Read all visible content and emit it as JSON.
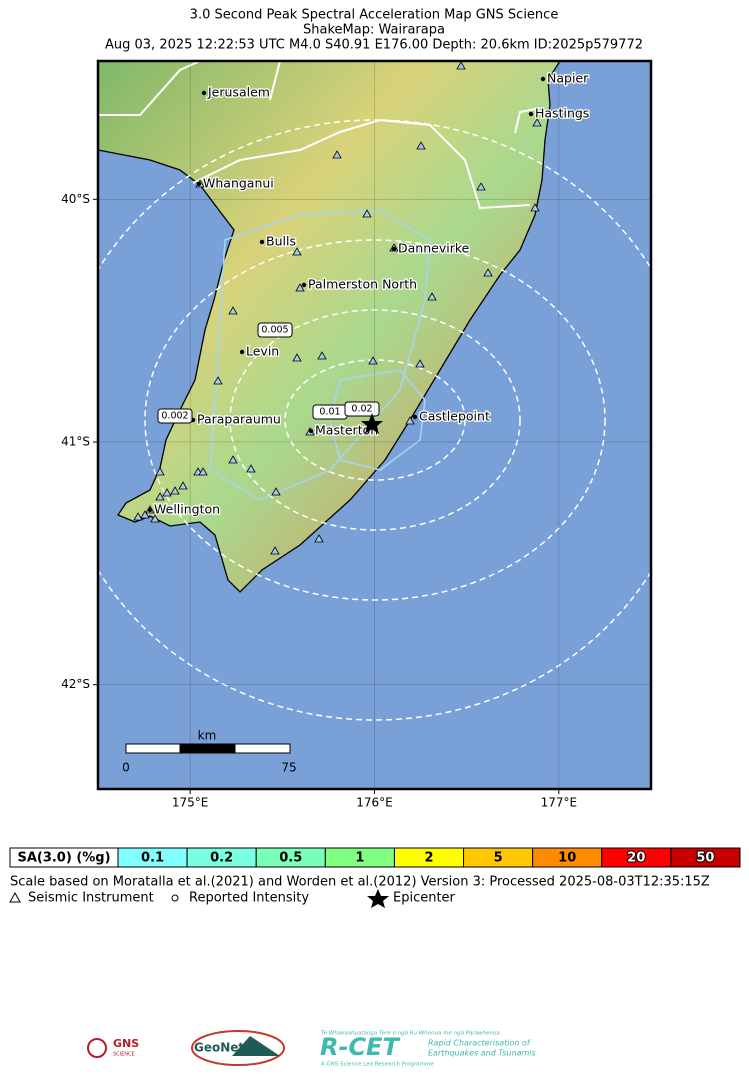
{
  "header": {
    "title": "3.0 Second Peak Spectral Acceleration Map GNS Science",
    "subtitle": "ShakeMap: Wairarapa",
    "event": "Aug 03, 2025 12:22:53 UTC M4.0 S40.91 E176.00 Depth: 20.6km ID:2025p579772"
  },
  "map": {
    "xlim": [
      174.5,
      177.5
    ],
    "ylim": [
      -42.43,
      -39.43
    ],
    "xticks": [
      {
        "value": 175,
        "label": "175°E"
      },
      {
        "value": 176,
        "label": "176°E"
      },
      {
        "value": 177,
        "label": "177°E"
      }
    ],
    "yticks": [
      {
        "value": -40,
        "label": "40°S"
      },
      {
        "value": -41,
        "label": "41°S"
      },
      {
        "value": -42,
        "label": "42°S"
      }
    ],
    "cities": [
      "Jerusalem",
      "Napier",
      "Hastings",
      "Whanganui",
      "Bulls",
      "Dannevirke",
      "Palmerston North",
      "Levin",
      "Castlepoint",
      "Paraparaumu",
      "Masterton",
      "Wellington"
    ],
    "contour_labels": [
      "0.005",
      "0.002",
      "0.01",
      "0.02"
    ],
    "scale": {
      "unit": "km",
      "start": "0",
      "end": "75"
    }
  },
  "legend": {
    "title": "SA(3.0) (%g)",
    "levels": [
      {
        "label": "0.1",
        "color": "#80ffff"
      },
      {
        "label": "0.2",
        "color": "#7affe1"
      },
      {
        "label": "0.5",
        "color": "#7affb8"
      },
      {
        "label": "1",
        "color": "#80ff80"
      },
      {
        "label": "2",
        "color": "#ffff00"
      },
      {
        "label": "5",
        "color": "#ffc800"
      },
      {
        "label": "10",
        "color": "#ff8c00"
      },
      {
        "label": "20",
        "color": "#ff0000"
      },
      {
        "label": "50",
        "color": "#c80000"
      }
    ]
  },
  "footer": {
    "note": "Scale based on Moratalla et al.(2021) and Worden et al.(2012)   Version 3: Processed 2025-08-03T12:35:15Z",
    "symbols": [
      "Seismic Instrument",
      "Reported Intensity",
      "Epicenter"
    ]
  },
  "logos": {
    "gns": "GNS",
    "gns_sub": "SCIENCE",
    "geonet": "GeoNet",
    "rcet": "R-CET",
    "rcet_maori": "Te Whakaahuatanga Tere o ngā Rū Whenua me ngā Parawhenua",
    "rcet_line1": "Rapid Characterisation of",
    "rcet_line2": "Earthquakes and Tsunamis",
    "rcet_footer": "A GNS Science Led Research Programme"
  }
}
